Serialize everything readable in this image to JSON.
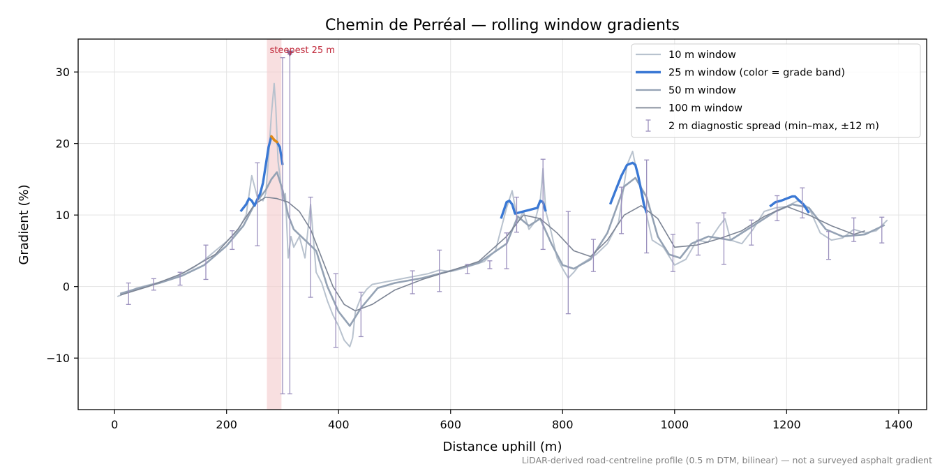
{
  "chart_data": {
    "type": "line",
    "title": "Chemin de Perréal — rolling window gradients",
    "xlabel": "Distance uphill (m)",
    "ylabel": "Gradient (%)",
    "xlim": [
      -65,
      1450
    ],
    "ylim": [
      -17.2,
      34.6
    ],
    "xticks": [
      0,
      200,
      400,
      600,
      800,
      1000,
      1200,
      1400
    ],
    "yticks": [
      -10,
      0,
      10,
      20,
      30
    ],
    "ytick_labels": [
      "−10",
      "0",
      "10",
      "20",
      "30"
    ],
    "grid": true,
    "legend_position": "top-right",
    "footnote": "LiDAR-derived road-centreline profile (0.5 m DTM, bilinear) — not a surveyed asphalt gradient",
    "colors": {
      "w10": "#b8c2ce",
      "w25": "#3a78d4",
      "w25_steep": "#e08a16",
      "w50": "#94a2b4",
      "w100": "#7c8494",
      "spread": "#9a8fbd",
      "highlight": "#f4c9cc",
      "annotation": "#c0283a",
      "marker": "#8a6a9a"
    },
    "highlight_band": {
      "x0": 272,
      "x1": 298,
      "label": "steepest 25 m"
    },
    "steepest_marker": {
      "x": 313,
      "y": 32.6
    },
    "series": [
      {
        "name": "10 m window",
        "key": "w10",
        "x": [
          5,
          20,
          40,
          60,
          80,
          100,
          120,
          140,
          160,
          180,
          200,
          220,
          235,
          245,
          255,
          265,
          270,
          275,
          280,
          285,
          288,
          292,
          296,
          300,
          305,
          310,
          315,
          320,
          330,
          340,
          350,
          360,
          370,
          380,
          390,
          400,
          410,
          420,
          425,
          430,
          440,
          450,
          460,
          480,
          500,
          520,
          540,
          560,
          580,
          600,
          620,
          640,
          660,
          680,
          700,
          710,
          720,
          730,
          740,
          750,
          760,
          765,
          770,
          780,
          790,
          800,
          810,
          820,
          830,
          840,
          860,
          880,
          900,
          915,
          925,
          930,
          940,
          950,
          960,
          980,
          1000,
          1020,
          1040,
          1060,
          1080,
          1090,
          1100,
          1120,
          1140,
          1160,
          1180,
          1200,
          1220,
          1240,
          1260,
          1280,
          1300,
          1320,
          1340,
          1360,
          1380
        ],
        "y": [
          -1.4,
          -0.9,
          -0.2,
          0.2,
          0.6,
          1.1,
          1.8,
          2.6,
          3.7,
          5.0,
          6.3,
          7.8,
          10.0,
          15.5,
          12.5,
          12.0,
          13.0,
          18.0,
          24.0,
          28.4,
          25.0,
          17.5,
          15.0,
          12.0,
          13.0,
          4.0,
          7.0,
          5.5,
          7.0,
          4.0,
          11.5,
          2.0,
          0.5,
          -2.0,
          -4.0,
          -5.5,
          -7.5,
          -8.4,
          -7.2,
          -3.5,
          -1.5,
          -0.4,
          0.3,
          0.6,
          0.9,
          1.2,
          1.5,
          1.8,
          2.3,
          2.1,
          2.5,
          3.0,
          3.5,
          5.0,
          11.0,
          13.4,
          9.0,
          10.5,
          8.0,
          9.0,
          12.0,
          16.5,
          10.5,
          7.5,
          4.0,
          2.5,
          1.2,
          2.0,
          3.0,
          3.5,
          4.5,
          6.0,
          9.0,
          17.0,
          18.9,
          17.0,
          14.0,
          10.0,
          6.5,
          5.5,
          3.0,
          3.8,
          6.5,
          6.2,
          8.5,
          9.5,
          6.5,
          6.0,
          8.0,
          10.5,
          11.0,
          11.2,
          12.0,
          11.0,
          7.5,
          6.5,
          6.8,
          8.0,
          7.5,
          7.8,
          9.3
        ]
      },
      {
        "name": "25 m window (color = grade band)",
        "key": "w25",
        "x": [
          225,
          235,
          240,
          245,
          250,
          255,
          260,
          265,
          270,
          275,
          280,
          285,
          290,
          295,
          300,
          690,
          700,
          705,
          710,
          715,
          755,
          760,
          765,
          770,
          885,
          895,
          905,
          915,
          925,
          930,
          935,
          940,
          945,
          950,
          1170,
          1180,
          1190,
          1200,
          1210,
          1215,
          1220,
          1230,
          1240
        ],
        "y": [
          10.5,
          11.5,
          12.3,
          12.0,
          11.3,
          12.2,
          13.0,
          14.5,
          17.0,
          19.5,
          21.0,
          20.5,
          20.2,
          19.5,
          17.0,
          9.5,
          11.8,
          12.0,
          11.5,
          10.2,
          11.0,
          12.0,
          11.8,
          10.5,
          11.5,
          13.5,
          15.5,
          17.0,
          17.3,
          17.0,
          15.5,
          13.5,
          11.5,
          10.3,
          11.2,
          11.8,
          12.0,
          12.3,
          12.6,
          12.6,
          12.2,
          11.5,
          10.3
        ]
      },
      {
        "name": "50 m window",
        "key": "w50",
        "x": [
          10,
          40,
          80,
          120,
          160,
          200,
          230,
          250,
          260,
          270,
          280,
          290,
          300,
          310,
          320,
          340,
          360,
          380,
          400,
          420,
          440,
          470,
          500,
          550,
          600,
          650,
          700,
          720,
          740,
          760,
          780,
          800,
          820,
          850,
          880,
          910,
          930,
          950,
          970,
          990,
          1010,
          1030,
          1060,
          1100,
          1140,
          1180,
          1210,
          1240,
          1270,
          1300,
          1340,
          1375
        ],
        "y": [
          -1.0,
          -0.3,
          0.5,
          1.5,
          3.0,
          5.7,
          8.5,
          11.5,
          12.5,
          13.5,
          15.0,
          16.0,
          13.5,
          10.0,
          8.0,
          6.5,
          5.0,
          0.0,
          -3.5,
          -5.5,
          -3.0,
          -0.2,
          0.5,
          1.2,
          2.2,
          3.3,
          6.0,
          9.8,
          8.5,
          9.5,
          6.0,
          3.0,
          2.5,
          3.8,
          7.5,
          14.0,
          15.2,
          12.5,
          7.0,
          4.5,
          4.0,
          6.0,
          7.0,
          6.5,
          8.5,
          10.5,
          11.5,
          11.0,
          8.0,
          7.0,
          7.3,
          8.6
        ]
      },
      {
        "name": "100 m window",
        "key": "w100",
        "x": [
          10,
          60,
          120,
          180,
          220,
          250,
          270,
          290,
          310,
          330,
          350,
          370,
          390,
          410,
          430,
          460,
          500,
          550,
          600,
          650,
          700,
          730,
          760,
          790,
          820,
          850,
          880,
          910,
          940,
          970,
          1000,
          1040,
          1080,
          1120,
          1160,
          1200,
          1240,
          1280,
          1320,
          1340
        ],
        "y": [
          -1.2,
          0.0,
          1.8,
          4.5,
          8.0,
          11.5,
          12.5,
          12.3,
          11.8,
          10.5,
          8.0,
          4.0,
          0.0,
          -2.5,
          -3.4,
          -2.5,
          -0.5,
          1.0,
          2.2,
          3.5,
          7.0,
          10.0,
          9.5,
          7.5,
          5.0,
          4.2,
          6.5,
          10.0,
          11.3,
          9.5,
          5.5,
          5.8,
          6.7,
          7.8,
          9.8,
          11.2,
          10.0,
          8.5,
          7.3,
          7.8
        ]
      }
    ],
    "errorbars": {
      "name": "2 m diagnostic spread (min–max, ±12 m)",
      "points": [
        {
          "x": 25,
          "low": -2.5,
          "high": 0.5
        },
        {
          "x": 70,
          "low": -0.5,
          "high": 1.1
        },
        {
          "x": 117,
          "low": 0.2,
          "high": 2.0
        },
        {
          "x": 163,
          "low": 1.0,
          "high": 5.8
        },
        {
          "x": 210,
          "low": 5.2,
          "high": 7.8
        },
        {
          "x": 255,
          "low": 5.7,
          "high": 17.3
        },
        {
          "x": 300,
          "low": -15.0,
          "high": 32.0
        },
        {
          "x": 313,
          "low": -15.0,
          "high": 32.5
        },
        {
          "x": 350,
          "low": -1.5,
          "high": 12.5
        },
        {
          "x": 395,
          "low": -8.5,
          "high": 1.8
        },
        {
          "x": 440,
          "low": -7.0,
          "high": -0.8
        },
        {
          "x": 532,
          "low": -1.0,
          "high": 2.2
        },
        {
          "x": 580,
          "low": -0.7,
          "high": 5.1
        },
        {
          "x": 630,
          "low": 1.8,
          "high": 3.1
        },
        {
          "x": 670,
          "low": 2.5,
          "high": 3.6
        },
        {
          "x": 700,
          "low": 2.5,
          "high": 7.5
        },
        {
          "x": 718,
          "low": 7.6,
          "high": 12.5
        },
        {
          "x": 765,
          "low": 5.2,
          "high": 17.8
        },
        {
          "x": 810,
          "low": -3.8,
          "high": 10.5
        },
        {
          "x": 855,
          "low": 2.1,
          "high": 6.6
        },
        {
          "x": 905,
          "low": 7.4,
          "high": 13.9
        },
        {
          "x": 950,
          "low": 4.7,
          "high": 17.7
        },
        {
          "x": 997,
          "low": 2.1,
          "high": 7.3
        },
        {
          "x": 1042,
          "low": 4.4,
          "high": 8.9
        },
        {
          "x": 1088,
          "low": 3.1,
          "high": 10.3
        },
        {
          "x": 1137,
          "low": 5.8,
          "high": 9.3
        },
        {
          "x": 1183,
          "low": 9.2,
          "high": 12.7
        },
        {
          "x": 1228,
          "low": 9.6,
          "high": 13.8
        },
        {
          "x": 1275,
          "low": 3.8,
          "high": 7.7
        },
        {
          "x": 1320,
          "low": 6.3,
          "high": 9.6
        },
        {
          "x": 1370,
          "low": 6.1,
          "high": 9.7
        }
      ]
    }
  }
}
